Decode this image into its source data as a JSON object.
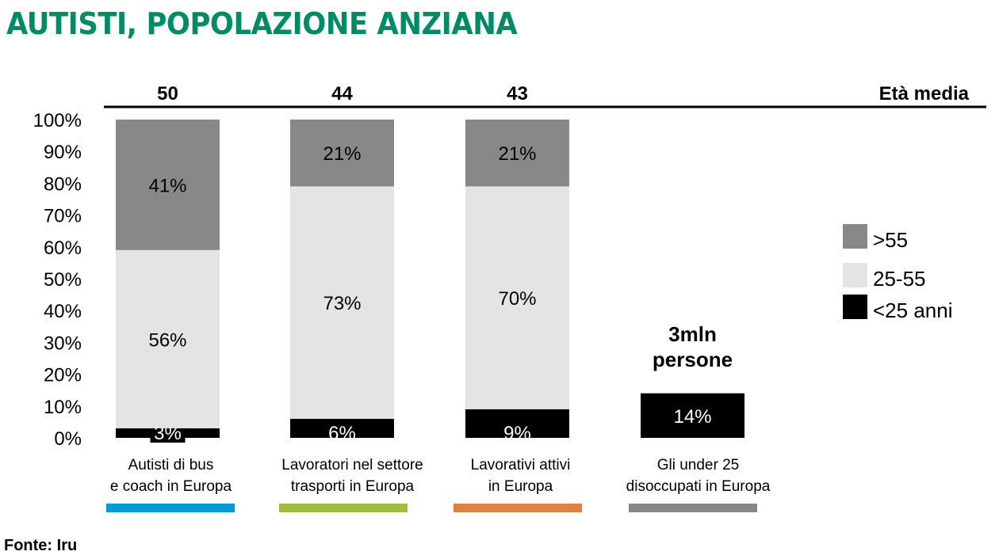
{
  "chart_data": {
    "type": "bar",
    "stacked": true,
    "title": "AUTISTI, POPOLAZIONE ANZIANA",
    "title_color": "#008a66",
    "source": "Fonte: Iru",
    "ylim": [
      0,
      100
    ],
    "yticks": [
      "0%",
      "10%",
      "20%",
      "30%",
      "40%",
      "50%",
      "60%",
      "70%",
      "80%",
      "90%",
      "100%"
    ],
    "avg_age_label": "Età media",
    "categories": [
      {
        "lines": [
          "Autisti di bus",
          "e coach in Europa"
        ],
        "avg_age": "50",
        "accent": "#009bd7"
      },
      {
        "lines": [
          "Lavoratori nel settore",
          "trasporti in Europa"
        ],
        "avg_age": "44",
        "accent": "#a0bd3e"
      },
      {
        "lines": [
          "Lavorativi attivi",
          "in Europa"
        ],
        "avg_age": "43",
        "accent": "#e08144"
      },
      {
        "lines": [
          "Gli under 25",
          "disoccupati in Europa"
        ],
        "avg_age": "",
        "accent": "#878787"
      }
    ],
    "series": [
      {
        "name": "<25 anni",
        "color": "#000000",
        "text_color": "#ffffff",
        "values": [
          3,
          6,
          9,
          14
        ],
        "labels": [
          "3%",
          "6%",
          "9%",
          "14%"
        ]
      },
      {
        "name": "25-55",
        "color": "#e3e4e6",
        "text_color": "#000000",
        "values": [
          56,
          73,
          70,
          null
        ],
        "labels": [
          "56%",
          "73%",
          "70%",
          ""
        ]
      },
      {
        "name": ">55",
        "color": "#878889",
        "text_color": "#000000",
        "values": [
          41,
          21,
          21,
          null
        ],
        "labels": [
          "41%",
          "21%",
          "21%",
          ""
        ]
      }
    ],
    "legend": {
      "placement": "right",
      "order": [
        ">55",
        "25-55",
        "<25 anni"
      ]
    },
    "annotation": {
      "category_index": 3,
      "lines": [
        "3mln",
        "persone"
      ]
    }
  }
}
